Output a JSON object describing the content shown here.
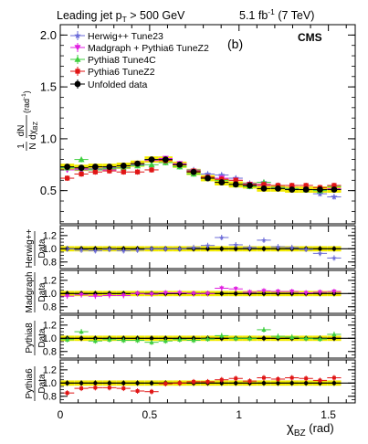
{
  "header": {
    "title_prefix": "Leading jet p",
    "title_sub": "T",
    "title_suffix": " > 500 GeV",
    "lumi_value": "5.1 fb",
    "lumi_sup": "-1",
    "lumi_energy": " (7 TeV)"
  },
  "main_panel": {
    "panel_label": "(b)",
    "experiment": "CMS",
    "ylabel_num": "1",
    "ylabel_den": "N",
    "ylabel_dn": "dN",
    "ylabel_dchi": "dχ",
    "ylabel_dchi_sub": "BZ",
    "ylabel_unit": "(rad",
    "ylabel_unit_sup": "-1",
    "ylabel_unit_close": ")"
  },
  "xaxis": {
    "label": "χ",
    "label_sub": "BZ",
    "unit": " (rad)",
    "ticks": [
      "0",
      "0.5",
      "1",
      "1.5"
    ]
  },
  "ratio_labels": [
    {
      "num": "Herwig++",
      "den": "Data"
    },
    {
      "num": "Madgraph",
      "den": "Data"
    },
    {
      "num": "Pythia8",
      "den": "Data"
    },
    {
      "num": "Pythia6",
      "den": "Data"
    }
  ],
  "colors": {
    "herwig": "#6b6bd8",
    "madgraph": "#e01ee0",
    "pythia8": "#3fcf3f",
    "pythia6": "#e01515",
    "data": "#000000",
    "band": "#f2ea00"
  },
  "chart_data": {
    "type": "line",
    "xlabel": "χBZ (rad)",
    "ylabel": "1/N dN/dχBZ (rad^-1)",
    "xlim": [
      0,
      1.65
    ],
    "x": [
      0.039,
      0.118,
      0.196,
      0.275,
      0.354,
      0.432,
      0.511,
      0.589,
      0.668,
      0.746,
      0.825,
      0.903,
      0.982,
      1.06,
      1.139,
      1.218,
      1.296,
      1.375,
      1.453,
      1.532
    ],
    "bin_half_width": 0.039,
    "main": {
      "ylim": [
        0.18,
        2.1
      ],
      "yticks": [
        "0.5",
        "1.0",
        "1.5",
        "2.0"
      ],
      "series": [
        {
          "name": "Herwig++ Tune23",
          "key": "herwig",
          "marker": "star",
          "values": [
            0.72,
            0.7,
            0.71,
            0.72,
            0.72,
            0.75,
            0.8,
            0.8,
            0.75,
            0.7,
            0.66,
            0.65,
            0.62,
            0.57,
            0.58,
            0.55,
            0.51,
            0.51,
            0.47,
            0.44
          ]
        },
        {
          "name": "Madgraph + Pythia6 TuneZ2",
          "key": "madgraph",
          "marker": "triangle-down",
          "values": [
            0.7,
            0.71,
            0.7,
            0.7,
            0.72,
            0.76,
            0.79,
            0.81,
            0.76,
            0.68,
            0.62,
            0.62,
            0.6,
            0.56,
            0.55,
            0.53,
            0.52,
            0.51,
            0.51,
            0.52
          ]
        },
        {
          "name": "Pythia8 Tune4C",
          "key": "pythia8",
          "marker": "triangle-up",
          "values": [
            0.72,
            0.8,
            0.7,
            0.71,
            0.72,
            0.74,
            0.75,
            0.77,
            0.73,
            0.66,
            0.62,
            0.6,
            0.56,
            0.54,
            0.58,
            0.53,
            0.52,
            0.51,
            0.5,
            0.54
          ]
        },
        {
          "name": "Pythia6 TuneZ2",
          "key": "pythia6",
          "marker": "square",
          "values": [
            0.62,
            0.66,
            0.68,
            0.69,
            0.68,
            0.68,
            0.7,
            0.79,
            0.75,
            0.69,
            0.63,
            0.61,
            0.6,
            0.56,
            0.56,
            0.55,
            0.55,
            0.55,
            0.53,
            0.55
          ]
        },
        {
          "name": "Unfolded data",
          "key": "data",
          "marker": "circle",
          "values": [
            0.73,
            0.72,
            0.73,
            0.73,
            0.74,
            0.76,
            0.8,
            0.8,
            0.75,
            0.68,
            0.62,
            0.58,
            0.56,
            0.55,
            0.52,
            0.52,
            0.51,
            0.51,
            0.51,
            0.51
          ]
        }
      ],
      "band_halfwidth": 0.03
    },
    "ratios": {
      "ylim": [
        0.7,
        1.35
      ],
      "yticks": [
        "0.8",
        "1.0",
        "1.2"
      ],
      "band_halfwidth": 0.04,
      "series": [
        {
          "key": "herwig",
          "marker": "star",
          "values": [
            1.0,
            0.98,
            0.97,
            0.99,
            0.97,
            0.98,
            1.0,
            1.0,
            1.0,
            1.02,
            1.05,
            1.17,
            1.06,
            1.02,
            1.13,
            1.03,
            1.02,
            0.99,
            0.93,
            0.86
          ]
        },
        {
          "key": "madgraph",
          "marker": "triangle-down",
          "values": [
            0.96,
            0.98,
            0.96,
            0.97,
            0.97,
            1.0,
            0.99,
            1.01,
            1.01,
            1.0,
            1.0,
            1.08,
            1.07,
            1.02,
            1.04,
            1.03,
            1.03,
            1.01,
            1.02,
            1.03
          ]
        },
        {
          "key": "pythia8",
          "marker": "triangle-up",
          "values": [
            0.98,
            1.1,
            0.96,
            0.98,
            0.97,
            0.97,
            0.94,
            0.96,
            0.98,
            0.97,
            0.99,
            1.04,
            1.0,
            1.0,
            1.13,
            1.03,
            1.02,
            1.0,
            0.99,
            1.06
          ]
        },
        {
          "key": "pythia6",
          "marker": "square",
          "values": [
            0.85,
            0.92,
            0.93,
            0.93,
            0.92,
            0.88,
            0.87,
            0.99,
            1.0,
            1.02,
            1.02,
            1.05,
            1.07,
            1.03,
            1.08,
            1.06,
            1.08,
            1.07,
            1.04,
            1.08
          ]
        }
      ]
    }
  }
}
